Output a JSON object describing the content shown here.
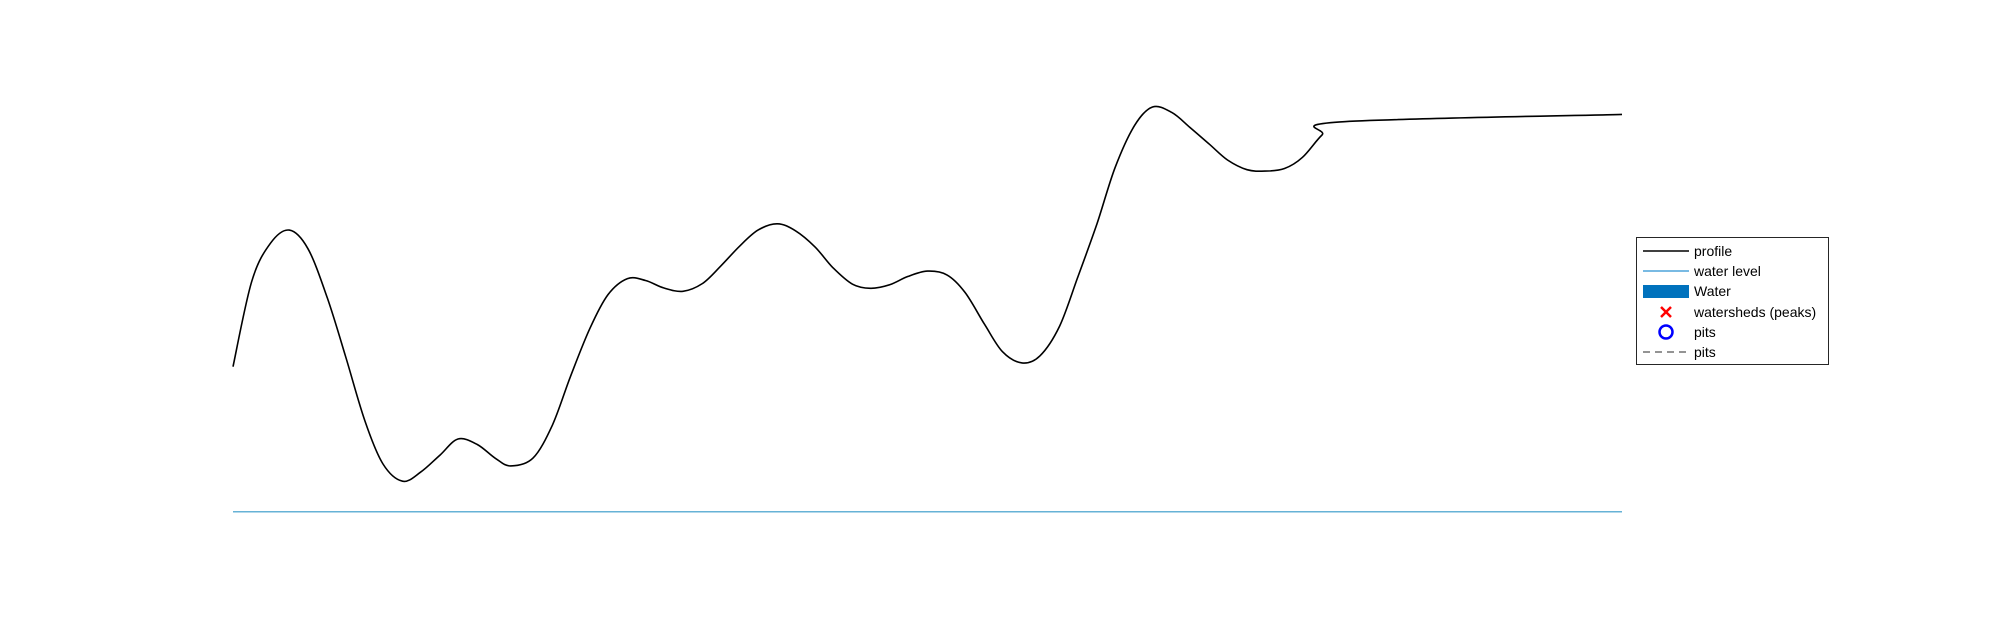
{
  "chart_data": {
    "type": "line",
    "xlim": [
      0,
      1
    ],
    "ylim": [
      0,
      1
    ],
    "grid": false,
    "axes_visible": false,
    "legend_position": "east",
    "series": [
      {
        "name": "profile",
        "color": "#000000",
        "x": [
          0,
          0.0135,
          0.027,
          0.0405,
          0.054,
          0.068,
          0.081,
          0.095,
          0.108,
          0.122,
          0.135,
          0.149,
          0.162,
          0.176,
          0.189,
          0.2,
          0.216,
          0.23,
          0.243,
          0.257,
          0.27,
          0.284,
          0.297,
          0.31,
          0.324,
          0.338,
          0.351,
          0.365,
          0.378,
          0.392,
          0.405,
          0.419,
          0.432,
          0.446,
          0.459,
          0.473,
          0.486,
          0.5,
          0.514,
          0.527,
          0.541,
          0.554,
          0.568,
          0.581,
          0.595,
          0.608,
          0.622,
          0.635,
          0.649,
          0.662,
          0.676,
          0.689,
          0.703,
          0.716,
          0.73,
          0.743,
          0.757,
          0.77,
          0.784,
          0.797,
          0.811,
          0.824,
          0.838,
          0.851,
          0.865,
          0.878,
          0.892,
          0.905,
          0.919,
          0.932,
          0.946,
          0.959,
          0.973,
          0.986,
          1
        ],
        "y": [
          0.344,
          0.573,
          0.675,
          0.71,
          0.66,
          0.527,
          0.372,
          0.198,
          0.083,
          0.037,
          0.061,
          0.107,
          0.15,
          0.135,
          0.098,
          0.078,
          0.099,
          0.188,
          0.318,
          0.447,
          0.537,
          0.58,
          0.575,
          0.555,
          0.546,
          0.567,
          0.613,
          0.668,
          0.71,
          0.727,
          0.708,
          0.665,
          0.609,
          0.565,
          0.554,
          0.564,
          0.586,
          0.6,
          0.59,
          0.543,
          0.458,
          0.384,
          0.354,
          0.373,
          0.452,
          0.582,
          0.727,
          0.877,
          0.99,
          1.04,
          1.025,
          0.985,
          0.94,
          0.898,
          0.872,
          0.868,
          0.875,
          0.905,
          0.965,
          1.0,
          1.0,
          1.0,
          1.0,
          1.0,
          1.0,
          1.0,
          1.0,
          1.0,
          1.0,
          1.0,
          1.0,
          1.0,
          1.0,
          1.0,
          1.0
        ]
      },
      {
        "name": "water level",
        "color": "#0072BD",
        "x": [
          0,
          1
        ],
        "y": [
          -0.045,
          -0.045
        ]
      }
    ],
    "legend": [
      {
        "label": "profile",
        "kind": "line",
        "color": "#000000"
      },
      {
        "label": "water level",
        "kind": "line",
        "color": "#4DA3DA"
      },
      {
        "label": "Water",
        "kind": "patch",
        "color": "#0072BD"
      },
      {
        "label": "watersheds (peaks)",
        "kind": "marker-x",
        "color": "#FF0000"
      },
      {
        "label": "pits",
        "kind": "marker-o",
        "color": "#0000FF"
      },
      {
        "label": "pits",
        "kind": "dashed",
        "color": "#555555"
      }
    ]
  }
}
